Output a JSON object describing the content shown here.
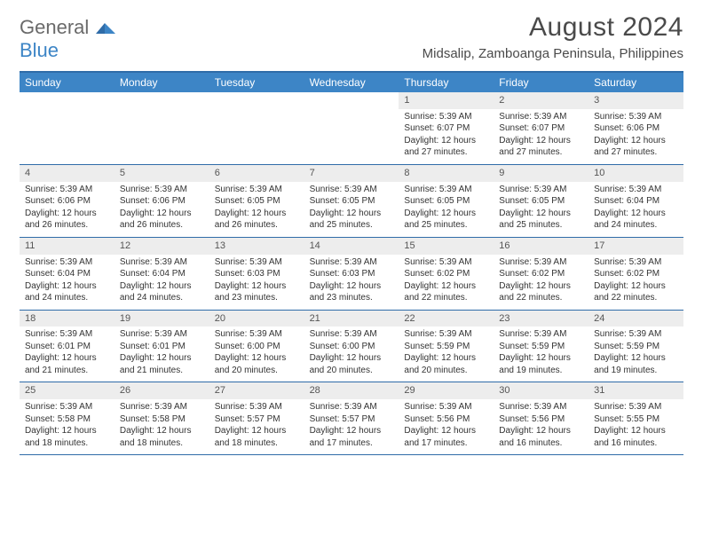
{
  "logo": {
    "top": "General",
    "bottom": "Blue"
  },
  "title": "August 2024",
  "subtitle": "Midsalip, Zamboanga Peninsula, Philippines",
  "colors": {
    "header_bg": "#3d85c6",
    "header_text": "#ffffff",
    "rule": "#2f6ca8",
    "datebar_bg": "#ededed",
    "body_text": "#333333",
    "title_text": "#4a4a4a"
  },
  "day_names": [
    "Sunday",
    "Monday",
    "Tuesday",
    "Wednesday",
    "Thursday",
    "Friday",
    "Saturday"
  ],
  "weeks": [
    [
      null,
      null,
      null,
      null,
      {
        "d": "1",
        "sr": "Sunrise: 5:39 AM",
        "ss": "Sunset: 6:07 PM",
        "dl1": "Daylight: 12 hours",
        "dl2": "and 27 minutes."
      },
      {
        "d": "2",
        "sr": "Sunrise: 5:39 AM",
        "ss": "Sunset: 6:07 PM",
        "dl1": "Daylight: 12 hours",
        "dl2": "and 27 minutes."
      },
      {
        "d": "3",
        "sr": "Sunrise: 5:39 AM",
        "ss": "Sunset: 6:06 PM",
        "dl1": "Daylight: 12 hours",
        "dl2": "and 27 minutes."
      }
    ],
    [
      {
        "d": "4",
        "sr": "Sunrise: 5:39 AM",
        "ss": "Sunset: 6:06 PM",
        "dl1": "Daylight: 12 hours",
        "dl2": "and 26 minutes."
      },
      {
        "d": "5",
        "sr": "Sunrise: 5:39 AM",
        "ss": "Sunset: 6:06 PM",
        "dl1": "Daylight: 12 hours",
        "dl2": "and 26 minutes."
      },
      {
        "d": "6",
        "sr": "Sunrise: 5:39 AM",
        "ss": "Sunset: 6:05 PM",
        "dl1": "Daylight: 12 hours",
        "dl2": "and 26 minutes."
      },
      {
        "d": "7",
        "sr": "Sunrise: 5:39 AM",
        "ss": "Sunset: 6:05 PM",
        "dl1": "Daylight: 12 hours",
        "dl2": "and 25 minutes."
      },
      {
        "d": "8",
        "sr": "Sunrise: 5:39 AM",
        "ss": "Sunset: 6:05 PM",
        "dl1": "Daylight: 12 hours",
        "dl2": "and 25 minutes."
      },
      {
        "d": "9",
        "sr": "Sunrise: 5:39 AM",
        "ss": "Sunset: 6:05 PM",
        "dl1": "Daylight: 12 hours",
        "dl2": "and 25 minutes."
      },
      {
        "d": "10",
        "sr": "Sunrise: 5:39 AM",
        "ss": "Sunset: 6:04 PM",
        "dl1": "Daylight: 12 hours",
        "dl2": "and 24 minutes."
      }
    ],
    [
      {
        "d": "11",
        "sr": "Sunrise: 5:39 AM",
        "ss": "Sunset: 6:04 PM",
        "dl1": "Daylight: 12 hours",
        "dl2": "and 24 minutes."
      },
      {
        "d": "12",
        "sr": "Sunrise: 5:39 AM",
        "ss": "Sunset: 6:04 PM",
        "dl1": "Daylight: 12 hours",
        "dl2": "and 24 minutes."
      },
      {
        "d": "13",
        "sr": "Sunrise: 5:39 AM",
        "ss": "Sunset: 6:03 PM",
        "dl1": "Daylight: 12 hours",
        "dl2": "and 23 minutes."
      },
      {
        "d": "14",
        "sr": "Sunrise: 5:39 AM",
        "ss": "Sunset: 6:03 PM",
        "dl1": "Daylight: 12 hours",
        "dl2": "and 23 minutes."
      },
      {
        "d": "15",
        "sr": "Sunrise: 5:39 AM",
        "ss": "Sunset: 6:02 PM",
        "dl1": "Daylight: 12 hours",
        "dl2": "and 22 minutes."
      },
      {
        "d": "16",
        "sr": "Sunrise: 5:39 AM",
        "ss": "Sunset: 6:02 PM",
        "dl1": "Daylight: 12 hours",
        "dl2": "and 22 minutes."
      },
      {
        "d": "17",
        "sr": "Sunrise: 5:39 AM",
        "ss": "Sunset: 6:02 PM",
        "dl1": "Daylight: 12 hours",
        "dl2": "and 22 minutes."
      }
    ],
    [
      {
        "d": "18",
        "sr": "Sunrise: 5:39 AM",
        "ss": "Sunset: 6:01 PM",
        "dl1": "Daylight: 12 hours",
        "dl2": "and 21 minutes."
      },
      {
        "d": "19",
        "sr": "Sunrise: 5:39 AM",
        "ss": "Sunset: 6:01 PM",
        "dl1": "Daylight: 12 hours",
        "dl2": "and 21 minutes."
      },
      {
        "d": "20",
        "sr": "Sunrise: 5:39 AM",
        "ss": "Sunset: 6:00 PM",
        "dl1": "Daylight: 12 hours",
        "dl2": "and 20 minutes."
      },
      {
        "d": "21",
        "sr": "Sunrise: 5:39 AM",
        "ss": "Sunset: 6:00 PM",
        "dl1": "Daylight: 12 hours",
        "dl2": "and 20 minutes."
      },
      {
        "d": "22",
        "sr": "Sunrise: 5:39 AM",
        "ss": "Sunset: 5:59 PM",
        "dl1": "Daylight: 12 hours",
        "dl2": "and 20 minutes."
      },
      {
        "d": "23",
        "sr": "Sunrise: 5:39 AM",
        "ss": "Sunset: 5:59 PM",
        "dl1": "Daylight: 12 hours",
        "dl2": "and 19 minutes."
      },
      {
        "d": "24",
        "sr": "Sunrise: 5:39 AM",
        "ss": "Sunset: 5:59 PM",
        "dl1": "Daylight: 12 hours",
        "dl2": "and 19 minutes."
      }
    ],
    [
      {
        "d": "25",
        "sr": "Sunrise: 5:39 AM",
        "ss": "Sunset: 5:58 PM",
        "dl1": "Daylight: 12 hours",
        "dl2": "and 18 minutes."
      },
      {
        "d": "26",
        "sr": "Sunrise: 5:39 AM",
        "ss": "Sunset: 5:58 PM",
        "dl1": "Daylight: 12 hours",
        "dl2": "and 18 minutes."
      },
      {
        "d": "27",
        "sr": "Sunrise: 5:39 AM",
        "ss": "Sunset: 5:57 PM",
        "dl1": "Daylight: 12 hours",
        "dl2": "and 18 minutes."
      },
      {
        "d": "28",
        "sr": "Sunrise: 5:39 AM",
        "ss": "Sunset: 5:57 PM",
        "dl1": "Daylight: 12 hours",
        "dl2": "and 17 minutes."
      },
      {
        "d": "29",
        "sr": "Sunrise: 5:39 AM",
        "ss": "Sunset: 5:56 PM",
        "dl1": "Daylight: 12 hours",
        "dl2": "and 17 minutes."
      },
      {
        "d": "30",
        "sr": "Sunrise: 5:39 AM",
        "ss": "Sunset: 5:56 PM",
        "dl1": "Daylight: 12 hours",
        "dl2": "and 16 minutes."
      },
      {
        "d": "31",
        "sr": "Sunrise: 5:39 AM",
        "ss": "Sunset: 5:55 PM",
        "dl1": "Daylight: 12 hours",
        "dl2": "and 16 minutes."
      }
    ]
  ]
}
